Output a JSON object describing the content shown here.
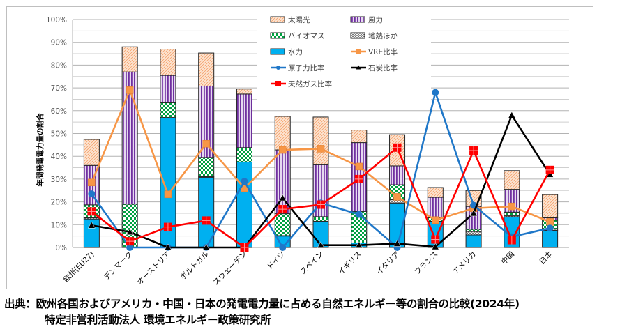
{
  "chart_data": {
    "type": "bar",
    "stacked": true,
    "ylabel": "年間発電電力量の割合",
    "ylim": [
      0,
      100
    ],
    "yticks": [
      "0%",
      "10%",
      "20%",
      "30%",
      "40%",
      "50%",
      "60%",
      "70%",
      "80%",
      "90%",
      "100%"
    ],
    "grid": true,
    "legend_position": "top-center",
    "categories": [
      "欧州(EU27)",
      "デンマーク",
      "オーストリア",
      "ポルトガル",
      "スウェーデン",
      "ドイツ",
      "スペイン",
      "イギリス",
      "イタリア",
      "フランス",
      "アメリカ",
      "中国",
      "日本"
    ],
    "series": [
      {
        "name": "水力",
        "kind": "bar",
        "color": "#00b0f0",
        "values": [
          12.5,
          0,
          57,
          30.8,
          37.5,
          5,
          11.5,
          2,
          19.5,
          11.5,
          5.5,
          13.5,
          7.5
        ]
      },
      {
        "name": "地熱ほか",
        "kind": "bar",
        "color": "#ffffff",
        "values": [
          0.5,
          0,
          0,
          0.3,
          0,
          0.2,
          0,
          0,
          1.5,
          0,
          1.5,
          0.5,
          0.7
        ]
      },
      {
        "name": "バイオマス",
        "kind": "bar",
        "color": "#00b050",
        "values": [
          5.7,
          19,
          6.5,
          8.4,
          6.3,
          9.6,
          2,
          13.8,
          6.5,
          1.5,
          1,
          1.5,
          3.8
        ]
      },
      {
        "name": "風力",
        "kind": "bar",
        "color": "#7030a0",
        "values": [
          17.3,
          58,
          12,
          31.3,
          23.5,
          28,
          22.8,
          30.2,
          8.3,
          9,
          10,
          10,
          1
        ]
      },
      {
        "name": "太陽光",
        "kind": "bar",
        "color": "#f4b183",
        "values": [
          11.4,
          11,
          11.5,
          14.5,
          2.2,
          14.7,
          20.9,
          5.5,
          13.7,
          4.3,
          7,
          8.2,
          10.2
        ]
      },
      {
        "name": "VRE比率",
        "kind": "line",
        "color": "#f79646",
        "marker": "square",
        "values": [
          28.5,
          69,
          23.3,
          45.5,
          26,
          42.8,
          43.3,
          35.5,
          22.2,
          12,
          17.2,
          18,
          11.2
        ]
      },
      {
        "name": "原子力比率",
        "kind": "line",
        "color": "#1f77c8",
        "marker": "circle",
        "values": [
          23.5,
          0,
          0,
          0,
          29,
          0,
          19.5,
          14.5,
          0,
          68,
          18.5,
          4.7,
          8.5
        ]
      },
      {
        "name": "石炭比率",
        "kind": "line",
        "color": "#000000",
        "marker": "triangle",
        "values": [
          9.7,
          6.8,
          0,
          0,
          0,
          21.7,
          1,
          1,
          1.7,
          0.3,
          15,
          58,
          32
        ]
      },
      {
        "name": "天然ガス比率",
        "kind": "line",
        "color": "#ff0000",
        "marker": "square-cross",
        "values": [
          15.8,
          2.7,
          9,
          11.8,
          0,
          16.8,
          18.8,
          30,
          43.8,
          3.5,
          42.5,
          3.2,
          34
        ]
      }
    ],
    "legend_order": [
      "太陽光",
      "風力",
      "バイオマス",
      "地熱ほか",
      "水力",
      "VRE比率",
      "原子力比率",
      "石炭比率",
      "天然ガス比率"
    ]
  },
  "caption": {
    "line1": "出典：欧州各国およびアメリカ・中国・日本の発電電力量に占める自然エネルギー等の割合の比較(2024年)",
    "line2": "特定非営利活動法人 環境エネルギー政策研究所"
  }
}
